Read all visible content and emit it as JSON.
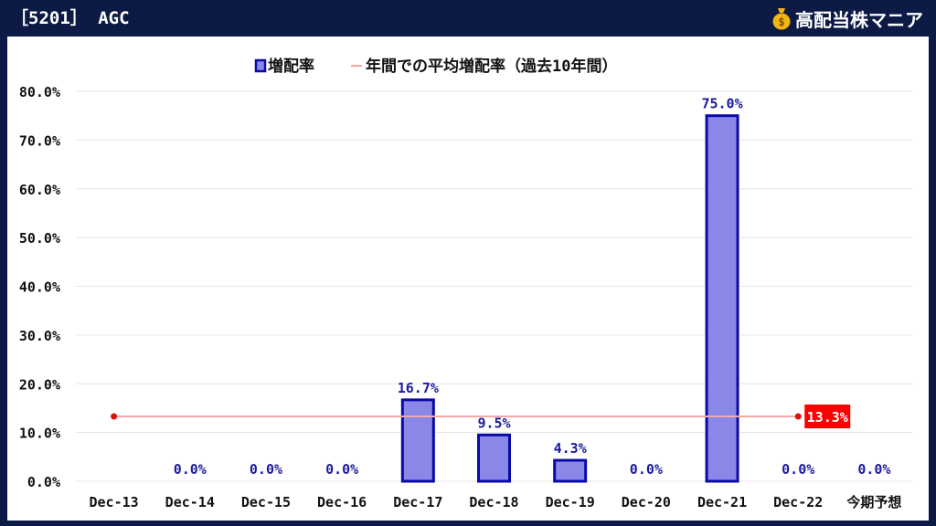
{
  "header": {
    "title": "［5201］ AGC"
  },
  "brand": {
    "name": "高配当株マニア",
    "icon": "money-bag-icon"
  },
  "colors": {
    "background": "#0c1a45",
    "bar_fill": "#8a87e6",
    "bar_stroke": "#0a0aa8",
    "label": "#1a1aa0",
    "avg_line": "#f4a8a8",
    "avg_marker": "#e01010",
    "avg_label_bg": "#ff0000"
  },
  "chart_data": {
    "type": "bar",
    "legend": [
      "増配率",
      "年間での平均増配率（過去10年間）"
    ],
    "categories": [
      "Dec-13",
      "Dec-14",
      "Dec-15",
      "Dec-16",
      "Dec-17",
      "Dec-18",
      "Dec-19",
      "Dec-20",
      "Dec-21",
      "Dec-22",
      "今期予想"
    ],
    "series": [
      {
        "name": "増配率",
        "values": [
          null,
          0.0,
          0.0,
          0.0,
          16.7,
          9.5,
          4.3,
          0.0,
          75.0,
          0.0,
          0.0
        ],
        "data_labels": [
          "",
          "0.0%",
          "0.0%",
          "0.0%",
          "16.7%",
          "9.5%",
          "4.3%",
          "0.0%",
          "75.0%",
          "0.0%",
          "0.0%"
        ]
      },
      {
        "name": "年間での平均増配率（過去10年間）",
        "value": 13.3,
        "label": "13.3%",
        "from_category": "Dec-13",
        "to_category": "Dec-22"
      }
    ],
    "ylim": [
      0,
      80
    ],
    "yticks": [
      "0.0%",
      "10.0%",
      "20.0%",
      "30.0%",
      "40.0%",
      "50.0%",
      "60.0%",
      "70.0%",
      "80.0%"
    ],
    "grid": true,
    "legend_position": "top-center"
  }
}
